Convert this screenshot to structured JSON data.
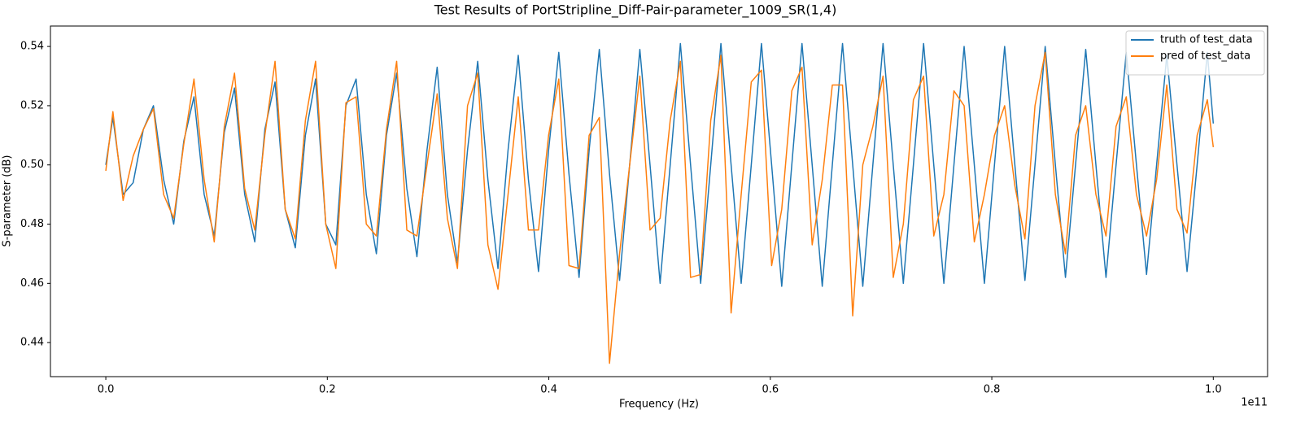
{
  "chart_data": {
    "type": "line",
    "title": "Test Results of PortStripline_Diff-Pair-parameter_1009_SR(1,4)",
    "xlabel": "Frequency (Hz)",
    "ylabel": "S-parameter (dB)",
    "x_offset_label": "1e11",
    "xlim": [
      -0.05,
      1.049
    ],
    "ylim": [
      0.4285,
      0.5469
    ],
    "xticks": [
      {
        "value": 0,
        "label": "0.0"
      },
      0.2,
      0.4,
      0.6,
      0.8,
      {
        "value": 1,
        "label": "1.0"
      }
    ],
    "yticks": [
      0.44,
      0.46,
      0.48,
      {
        "value": 0.5,
        "label": "0.50"
      },
      0.52,
      0.54
    ],
    "grid": false,
    "legend": "upper right",
    "x": [
      0,
      0.0064,
      0.0156,
      0.0247,
      0.0339,
      0.043,
      0.0522,
      0.0613,
      0.0704,
      0.0796,
      0.0888,
      0.0979,
      0.107,
      0.1162,
      0.1254,
      0.1345,
      0.1436,
      0.1528,
      0.162,
      0.1711,
      0.1802,
      0.1894,
      0.1986,
      0.2077,
      0.2168,
      0.226,
      0.2352,
      0.2443,
      0.2534,
      0.2626,
      0.2718,
      0.2809,
      0.29,
      0.2992,
      0.3084,
      0.3175,
      0.3266,
      0.3358,
      0.345,
      0.3541,
      0.3632,
      0.3724,
      0.3816,
      0.3907,
      0.3998,
      0.409,
      0.4182,
      0.4273,
      0.4364,
      0.4456,
      0.4548,
      0.4639,
      0.473,
      0.4822,
      0.4914,
      0.5005,
      0.5096,
      0.5188,
      0.528,
      0.5371,
      0.5462,
      0.5554,
      0.5646,
      0.5737,
      0.5828,
      0.592,
      0.6012,
      0.6103,
      0.6194,
      0.6286,
      0.6378,
      0.6469,
      0.656,
      0.6652,
      0.6744,
      0.6835,
      0.6926,
      0.7018,
      0.711,
      0.7201,
      0.7292,
      0.7384,
      0.7476,
      0.7567,
      0.7658,
      0.775,
      0.7842,
      0.7933,
      0.8024,
      0.8116,
      0.8208,
      0.8299,
      0.839,
      0.8482,
      0.8574,
      0.8665,
      0.8756,
      0.8848,
      0.894,
      0.9031,
      0.9122,
      0.9214,
      0.9306,
      0.9397,
      0.9488,
      0.958,
      0.9672,
      0.9763,
      0.9854,
      0.9946,
      1.0
    ],
    "series": [
      {
        "name": "truth of test_data",
        "color": "#1f77b4",
        "values": [
          0.5,
          0.516,
          0.49,
          0.494,
          0.512,
          0.52,
          0.495,
          0.48,
          0.508,
          0.523,
          0.49,
          0.476,
          0.511,
          0.526,
          0.49,
          0.474,
          0.512,
          0.528,
          0.485,
          0.472,
          0.51,
          0.529,
          0.48,
          0.473,
          0.52,
          0.529,
          0.49,
          0.47,
          0.51,
          0.531,
          0.492,
          0.469,
          0.505,
          0.533,
          0.49,
          0.467,
          0.505,
          0.535,
          0.495,
          0.465,
          0.505,
          0.537,
          0.495,
          0.464,
          0.505,
          0.538,
          0.497,
          0.462,
          0.505,
          0.539,
          0.497,
          0.461,
          0.5,
          0.539,
          0.5,
          0.46,
          0.5,
          0.541,
          0.5,
          0.46,
          0.5,
          0.541,
          0.5,
          0.46,
          0.5,
          0.541,
          0.5,
          0.459,
          0.5,
          0.541,
          0.5,
          0.459,
          0.5,
          0.541,
          0.5,
          0.459,
          0.5,
          0.541,
          0.5,
          0.46,
          0.5,
          0.541,
          0.5,
          0.46,
          0.5,
          0.54,
          0.5,
          0.46,
          0.5,
          0.54,
          0.5,
          0.461,
          0.5,
          0.54,
          0.5,
          0.462,
          0.5,
          0.539,
          0.5,
          0.462,
          0.5,
          0.538,
          0.5,
          0.463,
          0.5,
          0.537,
          0.5,
          0.464,
          0.5,
          0.538,
          0.514
        ]
      },
      {
        "name": "pred of test_data",
        "color": "#ff7f0e",
        "values": [
          0.498,
          0.518,
          0.488,
          0.503,
          0.512,
          0.519,
          0.49,
          0.482,
          0.507,
          0.529,
          0.495,
          0.474,
          0.513,
          0.531,
          0.492,
          0.478,
          0.51,
          0.535,
          0.485,
          0.475,
          0.515,
          0.535,
          0.48,
          0.465,
          0.521,
          0.523,
          0.48,
          0.476,
          0.512,
          0.535,
          0.478,
          0.476,
          0.5,
          0.524,
          0.482,
          0.465,
          0.52,
          0.531,
          0.473,
          0.458,
          0.49,
          0.523,
          0.478,
          0.478,
          0.51,
          0.529,
          0.466,
          0.465,
          0.51,
          0.516,
          0.433,
          0.47,
          0.5,
          0.53,
          0.478,
          0.482,
          0.515,
          0.535,
          0.462,
          0.463,
          0.515,
          0.537,
          0.45,
          0.49,
          0.528,
          0.532,
          0.466,
          0.485,
          0.525,
          0.533,
          0.473,
          0.495,
          0.527,
          0.527,
          0.449,
          0.5,
          0.513,
          0.53,
          0.462,
          0.48,
          0.522,
          0.53,
          0.476,
          0.49,
          0.525,
          0.52,
          0.474,
          0.49,
          0.51,
          0.52,
          0.493,
          0.475,
          0.52,
          0.538,
          0.49,
          0.47,
          0.51,
          0.52,
          0.49,
          0.476,
          0.513,
          0.523,
          0.49,
          0.476,
          0.495,
          0.527,
          0.485,
          0.477,
          0.51,
          0.522,
          0.506
        ]
      }
    ]
  }
}
